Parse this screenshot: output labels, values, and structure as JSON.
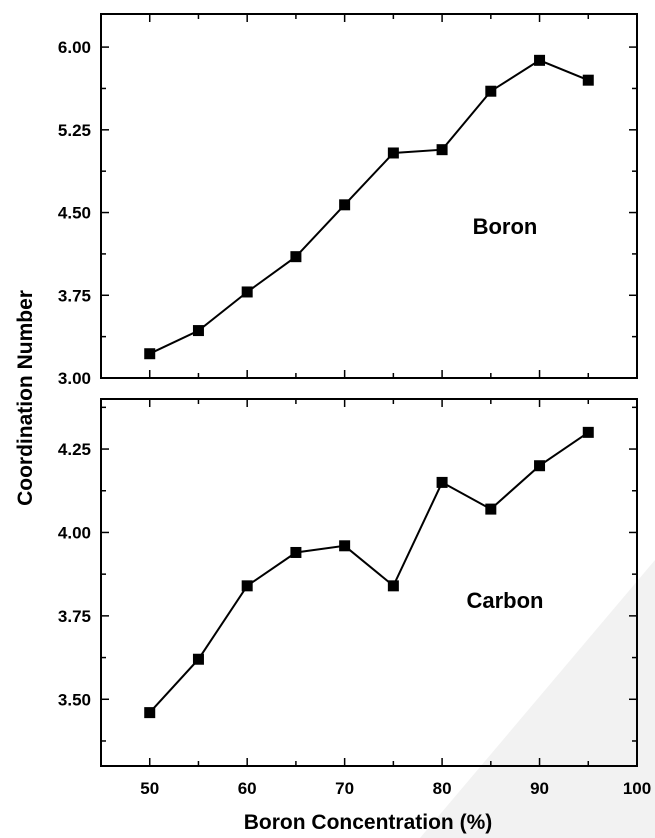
{
  "chart_data": {
    "type": "line",
    "shared_x_axis": {
      "xlabel": "Boron Concentration (%)",
      "xlim": [
        45,
        100
      ],
      "xticks": [
        50,
        60,
        70,
        80,
        90,
        100
      ],
      "xtick_labels": [
        "50",
        "60",
        "70",
        "80",
        "90",
        "100"
      ]
    },
    "shared_y_label": "Coordination Number",
    "panels": [
      {
        "label": "Boron",
        "ylim": [
          3.0,
          6.3
        ],
        "yticks": [
          3.0,
          3.75,
          4.5,
          5.25,
          6.0
        ],
        "ytick_labels": [
          "3.00",
          "3.75",
          "4.50",
          "5.25",
          "6.00"
        ],
        "series": [
          {
            "marker": "square",
            "x": [
              50,
              55,
              60,
              65,
              70,
              75,
              80,
              85,
              90,
              95
            ],
            "y": [
              3.22,
              3.43,
              3.78,
              4.1,
              4.57,
              5.04,
              5.07,
              5.6,
              5.88,
              5.7
            ]
          }
        ]
      },
      {
        "label": "Carbon",
        "ylim": [
          3.3,
          4.4
        ],
        "yticks": [
          3.5,
          3.75,
          4.0,
          4.25
        ],
        "ytick_labels": [
          "3.50",
          "3.75",
          "4.00",
          "4.25"
        ],
        "series": [
          {
            "marker": "square",
            "x": [
              50,
              55,
              60,
              65,
              70,
              75,
              80,
              85,
              90,
              95
            ],
            "y": [
              3.46,
              3.62,
              3.84,
              3.94,
              3.96,
              3.84,
              4.15,
              4.07,
              4.2,
              4.3
            ]
          }
        ]
      }
    ],
    "grid": false,
    "legend": "none"
  },
  "colors": {
    "line": "#000000",
    "marker": "#000000",
    "frame": "#000000",
    "background": "#ffffff"
  }
}
